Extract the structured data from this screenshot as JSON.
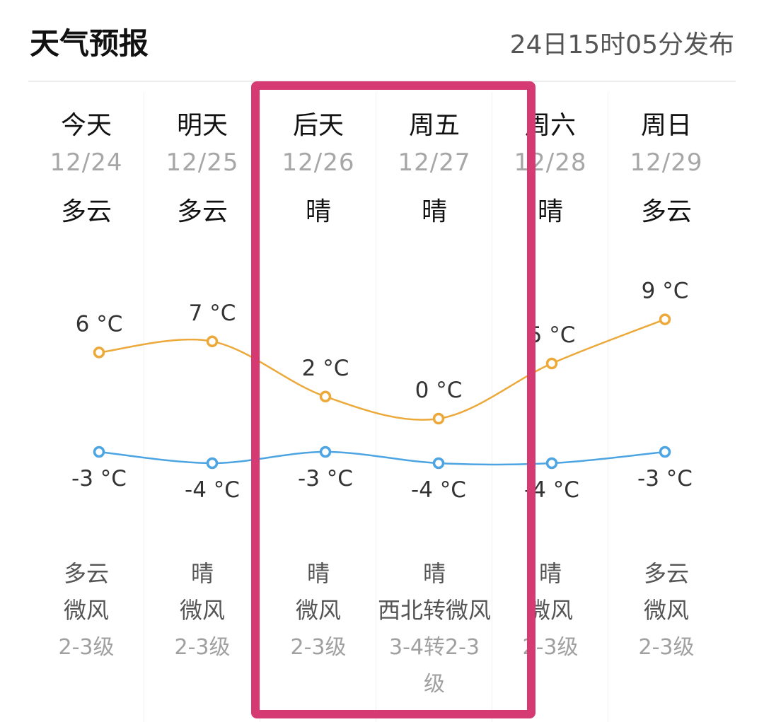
{
  "header": {
    "title": "天气预报",
    "published": "24日15时05分发布"
  },
  "colors": {
    "high_line": "#eca93a",
    "low_line": "#4ca4e2",
    "highlight_border": "#d63a72"
  },
  "days": [
    {
      "day": "今天",
      "date": "12/24",
      "cond_top": "多云",
      "high": "6 °C",
      "low": "-3 °C",
      "cond_bot": "多云",
      "wind_dir": "微风",
      "wind_level": "2-3级"
    },
    {
      "day": "明天",
      "date": "12/25",
      "cond_top": "多云",
      "high": "7 °C",
      "low": "-4 °C",
      "cond_bot": "晴",
      "wind_dir": "微风",
      "wind_level": "2-3级"
    },
    {
      "day": "后天",
      "date": "12/26",
      "cond_top": "晴",
      "high": "2 °C",
      "low": "-3 °C",
      "cond_bot": "晴",
      "wind_dir": "微风",
      "wind_level": "2-3级"
    },
    {
      "day": "周五",
      "date": "12/27",
      "cond_top": "晴",
      "high": "0 °C",
      "low": "-4 °C",
      "cond_bot": "晴",
      "wind_dir": "西北转微风",
      "wind_level": "3-4转2-3级"
    },
    {
      "day": "周六",
      "date": "12/28",
      "cond_top": "晴",
      "high": "5 °C",
      "low": "-4 °C",
      "cond_bot": "晴",
      "wind_dir": "微风",
      "wind_level": "2-3级"
    },
    {
      "day": "周日",
      "date": "12/29",
      "cond_top": "多云",
      "high": "9 °C",
      "low": "-3 °C",
      "cond_bot": "多云",
      "wind_dir": "微风",
      "wind_level": "2-3级"
    }
  ],
  "chart_data": {
    "type": "line",
    "categories": [
      "今天",
      "明天",
      "后天",
      "周五",
      "周六",
      "周日"
    ],
    "series": [
      {
        "values": [
          6,
          7,
          2,
          0,
          5,
          9
        ]
      },
      {
        "values": [
          -3,
          -4,
          -3,
          -4,
          -4,
          -3
        ]
      }
    ],
    "unit": "°C"
  }
}
